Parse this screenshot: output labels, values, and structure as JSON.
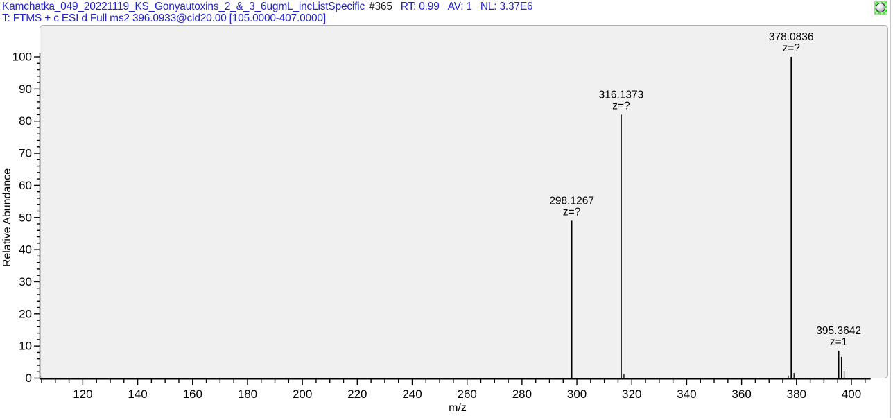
{
  "header": {
    "filename": "Kamchatka_049_20221119_KS_Gonyautoxins_2_&_3_6ugmL_incListSpecific",
    "scan_number": "#365",
    "rt": "RT: 0.99",
    "av": "AV: 1",
    "nl": "NL: 3.37E6",
    "filter_line": "T: FTMS + c ESI d Full ms2 396.0933@cid20.00 [105.0000-407.0000]"
  },
  "colors": {
    "header_text": "#2323c8",
    "scan_text": "#1c1c1c",
    "panel_bg": "#f0f0f0",
    "panel_border": "#b2b2b2",
    "axis": "#000000",
    "peak": "#000000",
    "pin_green": "#35e52e"
  },
  "chart_data": {
    "type": "bar",
    "subtype": "centroid-mass-spectrum",
    "title": "",
    "xlabel": "m/z",
    "ylabel": "Relative Abundance",
    "xlim": [
      105,
      407
    ],
    "ylim": [
      0,
      100
    ],
    "x_major_tick_step": 20,
    "x_minor_tick_step": 5,
    "y_major_tick_step": 10,
    "y_minor_tick_step": 2,
    "x_tick_labels": [
      120,
      140,
      160,
      180,
      200,
      220,
      240,
      260,
      280,
      300,
      320,
      340,
      360,
      380,
      400
    ],
    "y_tick_labels": [
      0,
      10,
      20,
      30,
      40,
      50,
      60,
      70,
      80,
      90,
      100
    ],
    "grid": false,
    "legend": false,
    "peaks": [
      {
        "mz": 298.1267,
        "intensity": 49.0,
        "label": "298.1267",
        "charge": "z=?"
      },
      {
        "mz": 316.1373,
        "intensity": 82.0,
        "label": "316.1373",
        "charge": "z=?"
      },
      {
        "mz": 317.14,
        "intensity": 1.3
      },
      {
        "mz": 377.0,
        "intensity": 0.8
      },
      {
        "mz": 378.0836,
        "intensity": 100.0,
        "label": "378.0836",
        "charge": "z=?"
      },
      {
        "mz": 379.09,
        "intensity": 1.6
      },
      {
        "mz": 395.3642,
        "intensity": 8.5,
        "label": "395.3642",
        "charge": "z=1"
      },
      {
        "mz": 396.37,
        "intensity": 6.6
      },
      {
        "mz": 397.37,
        "intensity": 2.2
      }
    ]
  }
}
